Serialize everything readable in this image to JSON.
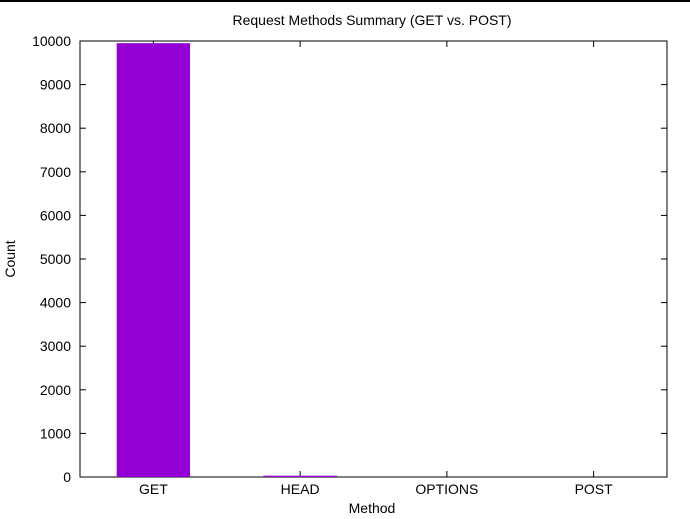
{
  "chart_data": {
    "type": "bar",
    "title": "Request Methods Summary (GET vs. POST)",
    "xlabel": "Method",
    "ylabel": "Count",
    "categories": [
      "GET",
      "HEAD",
      "OPTIONS",
      "POST"
    ],
    "values": [
      9950,
      30,
      0,
      0
    ],
    "ylim": [
      0,
      10000
    ],
    "yticks": [
      "0",
      "1000",
      "2000",
      "3000",
      "4000",
      "5000",
      "6000",
      "7000",
      "8000",
      "9000",
      "10000"
    ],
    "bar_color": "#9400d3",
    "grid": false,
    "legend": "none"
  }
}
